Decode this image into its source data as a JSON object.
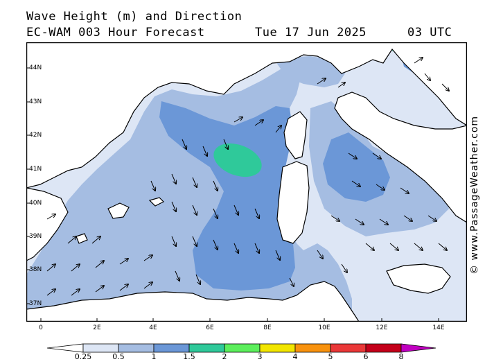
{
  "header": {
    "title": "Wave Height (m) and Direction",
    "subtitle": "EC-WAM 003 Hour Forecast",
    "date": "Tue 17 Jun 2025",
    "time": "03 UTC"
  },
  "axes": {
    "lon_labels": [
      "0",
      "2E",
      "4E",
      "6E",
      "8E",
      "10E",
      "12E",
      "14E"
    ],
    "lat_labels": [
      "44N",
      "43N",
      "42N",
      "41N",
      "40N",
      "39N",
      "38N",
      "37N"
    ]
  },
  "credit": "© www.PassageWeather.com",
  "legend": {
    "labels": [
      "0.25",
      "0.5",
      "1",
      "1.5",
      "2",
      "3",
      "4",
      "5",
      "6",
      "8"
    ],
    "colors": [
      "#ffffff",
      "#dde6f5",
      "#a5bde2",
      "#6b97d7",
      "#2fc99a",
      "#5cef5c",
      "#f2e600",
      "#f8920e",
      "#ea3838",
      "#c4001a",
      "#c000c0"
    ]
  },
  "map_colors": {
    "land": "#ffffff",
    "sea_low": "#dde6f5",
    "sea_mid": "#a5bde2",
    "sea_high": "#6b97d7",
    "sea_peak": "#2fc99a"
  }
}
